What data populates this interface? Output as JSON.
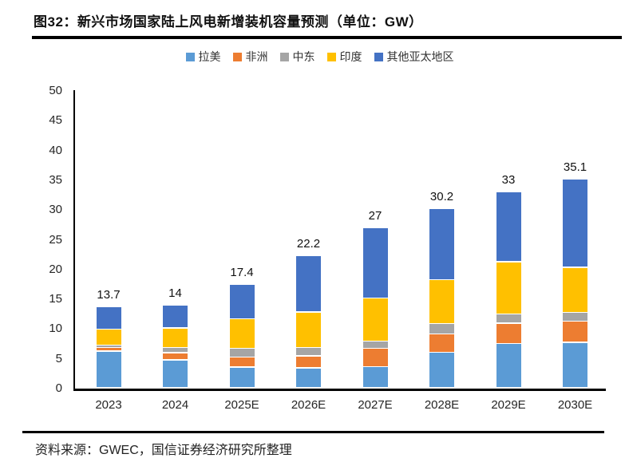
{
  "title": "图32：新兴市场国家陆上风电新增装机容量预测（单位：GW）",
  "source": "资料来源：GWEC，国信证券经济研究所整理",
  "chart_data": {
    "type": "bar",
    "stacked": true,
    "unit": "GW",
    "title": "新兴市场国家陆上风电新增装机容量预测",
    "categories": [
      "2023",
      "2024",
      "2025E",
      "2026E",
      "2027E",
      "2028E",
      "2029E",
      "2030E"
    ],
    "series": [
      {
        "name": "拉美",
        "color": "#5B9BD5",
        "values": [
          6.2,
          4.7,
          3.5,
          3.4,
          3.6,
          6.0,
          7.5,
          7.7
        ]
      },
      {
        "name": "非洲",
        "color": "#ED7D31",
        "values": [
          0.6,
          1.2,
          1.7,
          2.0,
          3.1,
          3.1,
          3.4,
          3.5
        ]
      },
      {
        "name": "中东",
        "color": "#A5A5A5",
        "values": [
          0.4,
          0.9,
          1.5,
          1.4,
          1.2,
          1.7,
          1.5,
          1.5
        ]
      },
      {
        "name": "印度",
        "color": "#FFC000",
        "values": [
          2.7,
          3.3,
          4.9,
          6.0,
          7.2,
          7.4,
          8.8,
          7.6
        ]
      },
      {
        "name": "其他亚太地区",
        "color": "#4472C4",
        "values": [
          3.8,
          3.9,
          5.8,
          9.4,
          11.9,
          12.0,
          11.8,
          14.8
        ]
      }
    ],
    "totals_labels": [
      "13.7",
      "14",
      "17.4",
      "22.2",
      "27",
      "30.2",
      "33",
      "35.1"
    ],
    "y_axis": {
      "min": 0,
      "max": 50,
      "step": 5
    },
    "legend_position": "top",
    "gridlines": false
  }
}
